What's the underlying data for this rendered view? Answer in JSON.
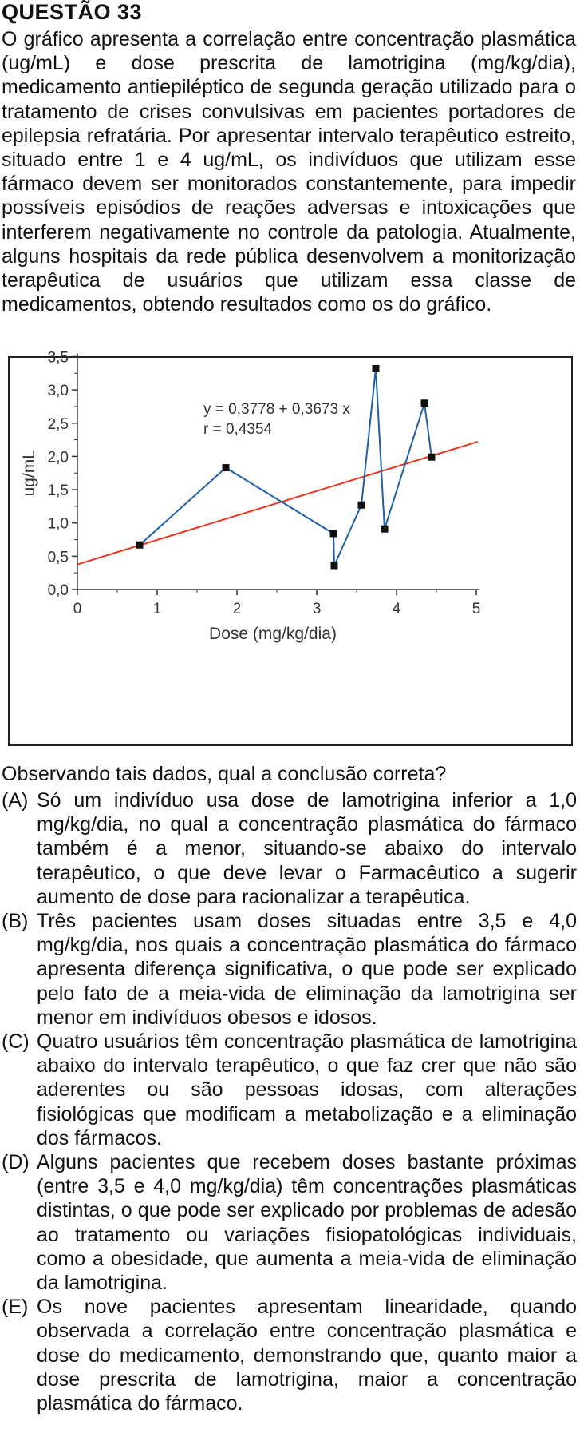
{
  "question": {
    "title": "QUESTÃO 33",
    "stem": "O gráfico apresenta a correlação entre concentração plasmática (ug/mL) e dose prescrita de lamotrigina (mg/kg/dia), medicamento antiepiléptico de segunda geração utilizado para o tratamento de crises convulsivas em pacientes portadores de epilepsia refratária. Por apresentar intervalo terapêutico estreito, situado entre 1 e 4 ug/mL, os indivíduos que utilizam esse fármaco devem ser monitorados constantemente, para impedir possíveis episódios de reações adversas e intoxicações que interferem negativamente no controle da patologia. Atualmente, alguns hospitais da rede pública desenvolvem a monitorização terapêutica de usuários que utilizam essa classe de medicamentos, obtendo resultados como os do gráfico.",
    "prompt": "Observando tais dados, qual a conclusão correta?",
    "options": [
      {
        "letter": "(A)",
        "text": "Só um indivíduo usa dose de lamotrigina inferior a 1,0 mg/kg/dia, no qual a concentração plasmática do fármaco também é a menor, situando-se abaixo do intervalo terapêutico, o que deve levar o Farmacêutico a sugerir aumento de dose para racionalizar a terapêutica."
      },
      {
        "letter": "(B)",
        "text": "Três pacientes usam doses situadas entre 3,5 e 4,0 mg/kg/dia, nos quais a concentração plasmática do fármaco apresenta diferença significativa, o que pode ser explicado pelo fato de a meia-vida de eliminação da lamotrigina ser menor em indivíduos obesos e idosos."
      },
      {
        "letter": "(C)",
        "text": "Quatro usuários têm concentração plasmática de lamotrigina abaixo do intervalo terapêutico, o que faz crer que não são aderentes ou são pessoas idosas, com alterações fisiológicas que modificam a metabolização e a eliminação dos fármacos."
      },
      {
        "letter": "(D)",
        "text": "Alguns pacientes que recebem doses bastante próximas (entre 3,5 e 4,0 mg/kg/dia) têm concentrações plasmáticas distintas, o que pode ser explicado por problemas de adesão ao tratamento ou variações fisiopatológicas individuais, como a obesidade, que aumenta a meia-vida de eliminação da lamotrigina."
      },
      {
        "letter": "(E)",
        "text": "Os nove pacientes apresentam linearidade, quando observada a correlação entre concentração plasmática e dose do medicamento, demonstrando que, quanto maior a dose prescrita de lamotrigina, maior a concentração plasmática do fármaco."
      }
    ]
  },
  "chart_data": {
    "type": "scatter",
    "xlabel": "Dose (mg/kg/dia)",
    "ylabel": "ug/mL",
    "xlim": [
      0,
      5
    ],
    "ylim": [
      0,
      3.5
    ],
    "x_ticks": [
      0,
      1,
      2,
      3,
      4,
      5
    ],
    "x_tick_labels": [
      "0",
      "1",
      "2",
      "3",
      "4",
      "5"
    ],
    "y_ticks": [
      0,
      0.5,
      1,
      1.5,
      2,
      2.5,
      3,
      3.5
    ],
    "y_tick_labels": [
      "0,0",
      "0,5",
      "1,0",
      "1,5",
      "2,0",
      "2,5",
      "3,0",
      "3,5"
    ],
    "grid": false,
    "series": [
      {
        "color": "#1f5fa6",
        "marker": "square",
        "x": [
          0.78,
          1.86,
          3.21,
          3.22,
          3.56,
          3.74,
          3.85,
          4.35,
          4.44
        ],
        "y": [
          0.67,
          1.83,
          0.84,
          0.36,
          1.27,
          3.32,
          0.91,
          2.8,
          1.99
        ]
      }
    ],
    "regression": {
      "color": "#e8361f",
      "intercept": 0.3778,
      "slope": 0.3673,
      "x_range": [
        0,
        5.02
      ]
    },
    "annotations": [
      "y = 0,3778 + 0,3673 x",
      "r = 0,4354"
    ]
  }
}
